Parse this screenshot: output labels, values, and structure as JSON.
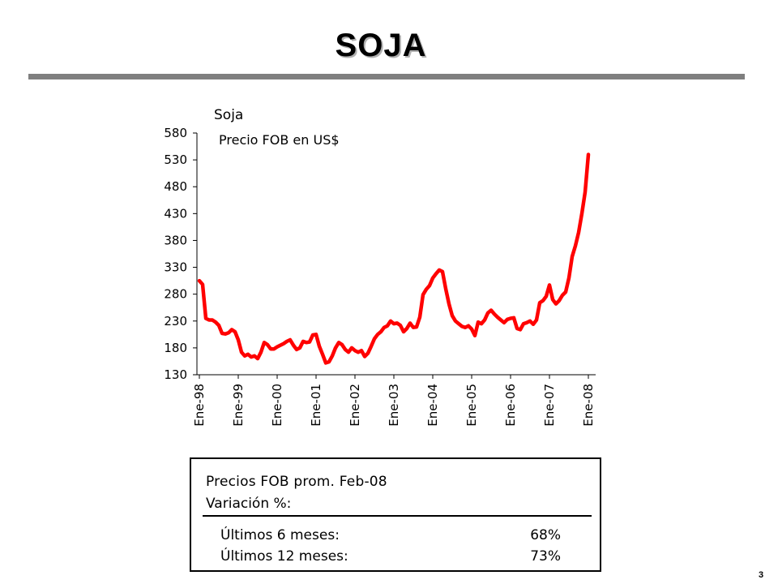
{
  "slide": {
    "title": "SOJA",
    "page_number": "3"
  },
  "info_box": {
    "heading": "Precios FOB prom. Feb-08",
    "subheading": "Variación %:",
    "rows": [
      {
        "label": "Últimos 6 meses:",
        "value": "68%"
      },
      {
        "label": "Últimos 12 meses:",
        "value": "73%"
      }
    ]
  },
  "chart_data": {
    "type": "line",
    "title": "Soja",
    "subtitle": "Precio FOB en US$",
    "xlabel": "",
    "ylabel": "",
    "ylim": [
      130,
      580
    ],
    "yticks": [
      130,
      180,
      230,
      280,
      330,
      380,
      430,
      480,
      530,
      580
    ],
    "x_tick_labels": [
      "Ene-98",
      "Ene-99",
      "Ene-00",
      "Ene-01",
      "Ene-02",
      "Ene-03",
      "Ene-04",
      "Ene-05",
      "Ene-06",
      "Ene-07",
      "Ene-08"
    ],
    "grid": false,
    "legend": "none",
    "series_color": "#ff0000",
    "series": [
      {
        "name": "",
        "x_start": "Ene-98",
        "frequency": "monthly",
        "values": [
          305,
          298,
          235,
          232,
          232,
          228,
          222,
          207,
          206,
          208,
          214,
          210,
          195,
          172,
          165,
          168,
          163,
          165,
          160,
          172,
          190,
          186,
          178,
          178,
          182,
          185,
          188,
          192,
          195,
          185,
          177,
          180,
          192,
          190,
          191,
          204,
          205,
          183,
          168,
          152,
          154,
          165,
          180,
          190,
          186,
          177,
          172,
          180,
          175,
          172,
          175,
          164,
          170,
          183,
          197,
          205,
          210,
          218,
          221,
          230,
          225,
          226,
          222,
          210,
          216,
          226,
          218,
          219,
          237,
          279,
          289,
          296,
          310,
          318,
          325,
          322,
          290,
          262,
          240,
          230,
          225,
          220,
          218,
          221,
          215,
          203,
          228,
          225,
          232,
          245,
          250,
          243,
          237,
          232,
          227,
          233,
          235,
          236,
          216,
          214,
          225,
          227,
          230,
          224,
          232,
          264,
          268,
          276,
          297,
          270,
          262,
          268,
          278,
          284,
          310,
          350,
          370,
          395,
          430,
          470,
          540
        ]
      }
    ]
  }
}
